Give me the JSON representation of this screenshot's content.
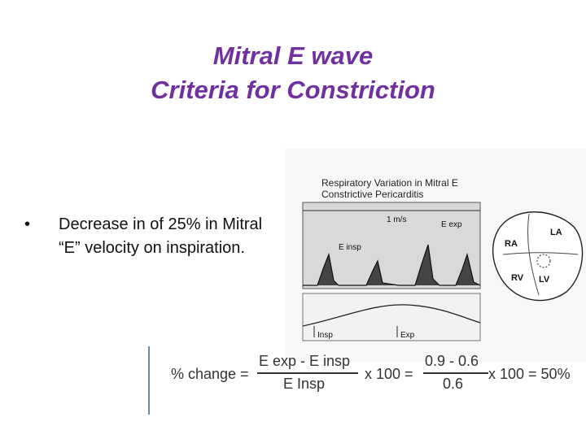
{
  "title": {
    "line1": "Mitral E wave",
    "line2": "Criteria for Constriction"
  },
  "bullet": {
    "symbol": "•",
    "text": "Decrease in of 25% in Mitral “E” velocity on inspiration."
  },
  "figure": {
    "heading1": "Respiratory Variation in Mitral E",
    "heading2": "Constrictive Pericarditis",
    "scale_label": "1 m/s",
    "e_exp_label": "E exp",
    "e_insp_label": "E insp",
    "insp_label": "Insp",
    "exp_label": "Exp",
    "chambers": {
      "la": "LA",
      "ra": "RA",
      "rv": "RV",
      "lv": "LV"
    }
  },
  "formula": {
    "lhs": "% change =",
    "num1": "E exp - E insp",
    "den1": "E Insp",
    "times1": "x 100 =",
    "num2": "0.9 - 0.6",
    "den2": "0.6",
    "times2": "x 100 = 50%"
  },
  "colors": {
    "title": "#7030a0",
    "trace_bg": "#d9d9d9"
  }
}
